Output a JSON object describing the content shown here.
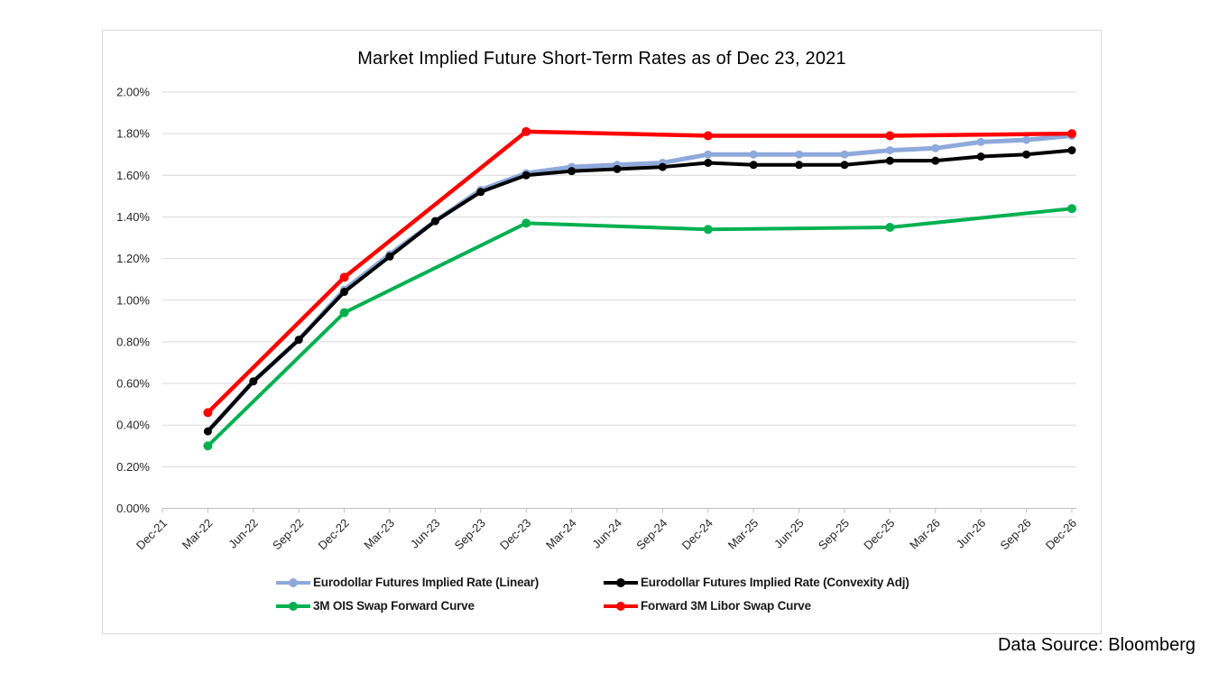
{
  "page": {
    "data_source": "Data Source: Bloomberg"
  },
  "chart_data": {
    "type": "line",
    "title": "Market Implied Future Short-Term Rates as of Dec 23, 2021",
    "categories": [
      "Dec-21",
      "Mar-22",
      "Jun-22",
      "Sep-22",
      "Dec-22",
      "Mar-23",
      "Jun-23",
      "Sep-23",
      "Dec-23",
      "Mar-24",
      "Jun-24",
      "Sep-24",
      "Dec-24",
      "Mar-25",
      "Jun-25",
      "Sep-25",
      "Dec-25",
      "Mar-26",
      "Jun-26",
      "Sep-26",
      "Dec-26"
    ],
    "y_axis": {
      "min": 0,
      "max": 2.0,
      "step": 0.2,
      "tick_format": "0.00%",
      "ylabel": "",
      "xlabel": ""
    },
    "grid": true,
    "legend_position": "bottom",
    "colors": {
      "gridline": "#d9d9d9",
      "axis_line": "#bfbfbf",
      "tick_label": "#262626",
      "title": "#000000"
    },
    "series": [
      {
        "name": "Eurodollar Futures Implied Rate (Linear)",
        "color": "#8EA9DB",
        "line_width": 5,
        "marker_r": 4.5,
        "values": [
          null,
          0.37,
          0.61,
          0.81,
          1.05,
          1.22,
          1.38,
          1.53,
          1.61,
          1.64,
          1.65,
          1.66,
          1.7,
          1.7,
          1.7,
          1.7,
          1.72,
          1.73,
          1.76,
          1.77,
          1.79
        ]
      },
      {
        "name": "Eurodollar Futures Implied Rate (Convexity Adj)",
        "color": "#000000",
        "line_width": 4,
        "marker_r": 4.5,
        "values": [
          null,
          0.37,
          0.61,
          0.81,
          1.04,
          1.21,
          1.38,
          1.52,
          1.6,
          1.62,
          1.63,
          1.64,
          1.66,
          1.65,
          1.65,
          1.65,
          1.67,
          1.67,
          1.69,
          1.7,
          1.72
        ]
      },
      {
        "name": "3M OIS Swap Forward Curve",
        "color": "#00B050",
        "line_width": 4,
        "marker_r": 5,
        "values": [
          null,
          0.3,
          null,
          null,
          0.94,
          null,
          null,
          null,
          1.37,
          null,
          null,
          null,
          1.34,
          null,
          null,
          null,
          1.35,
          null,
          null,
          null,
          1.44
        ]
      },
      {
        "name": "Forward 3M Libor Swap Curve",
        "color": "#FF0000",
        "line_width": 4.5,
        "marker_r": 5,
        "values": [
          null,
          0.46,
          null,
          null,
          1.11,
          null,
          null,
          null,
          1.81,
          null,
          null,
          null,
          1.79,
          null,
          null,
          null,
          1.79,
          null,
          null,
          null,
          1.8
        ]
      }
    ]
  }
}
